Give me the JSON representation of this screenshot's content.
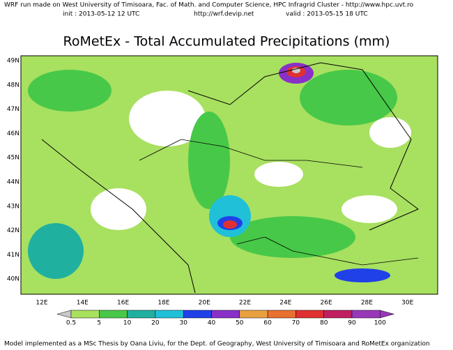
{
  "header": {
    "line1": "WRF run made on West University of Timisoara, Fac. of Math. and Computer Science, HPC Infragrid Cluster - http://www.hpc.uvt.ro",
    "init": "init : 2013-05-12  12 UTC",
    "url": "http://wrf.devip.net",
    "valid": "valid : 2013-05-15  18 UTC"
  },
  "title": "RoMetEx - Total Accumulated Precipitations (mm)",
  "map": {
    "lat_labels": [
      "49N",
      "48N",
      "47N",
      "46N",
      "45N",
      "44N",
      "43N",
      "42N",
      "41N",
      "40N"
    ],
    "lon_labels": [
      "12E",
      "14E",
      "16E",
      "18E",
      "20E",
      "22E",
      "24E",
      "26E",
      "28E",
      "30E"
    ]
  },
  "legend": {
    "labels": [
      "0.5",
      "5",
      "10",
      "20",
      "30",
      "40",
      "50",
      "60",
      "70",
      "80",
      "90",
      "100"
    ],
    "colors": [
      "#c8c8c8",
      "#a8e060",
      "#48c848",
      "#20b0a0",
      "#20c0d8",
      "#2040e8",
      "#8830c8",
      "#e8a040",
      "#e87030",
      "#e03030",
      "#c02060",
      "#9838b8"
    ]
  },
  "footer": "Model implemented as a MSc Thesis by Oana Liviu, for the Dept. of Geography, West University of Timisoara and RoMetEx organization"
}
